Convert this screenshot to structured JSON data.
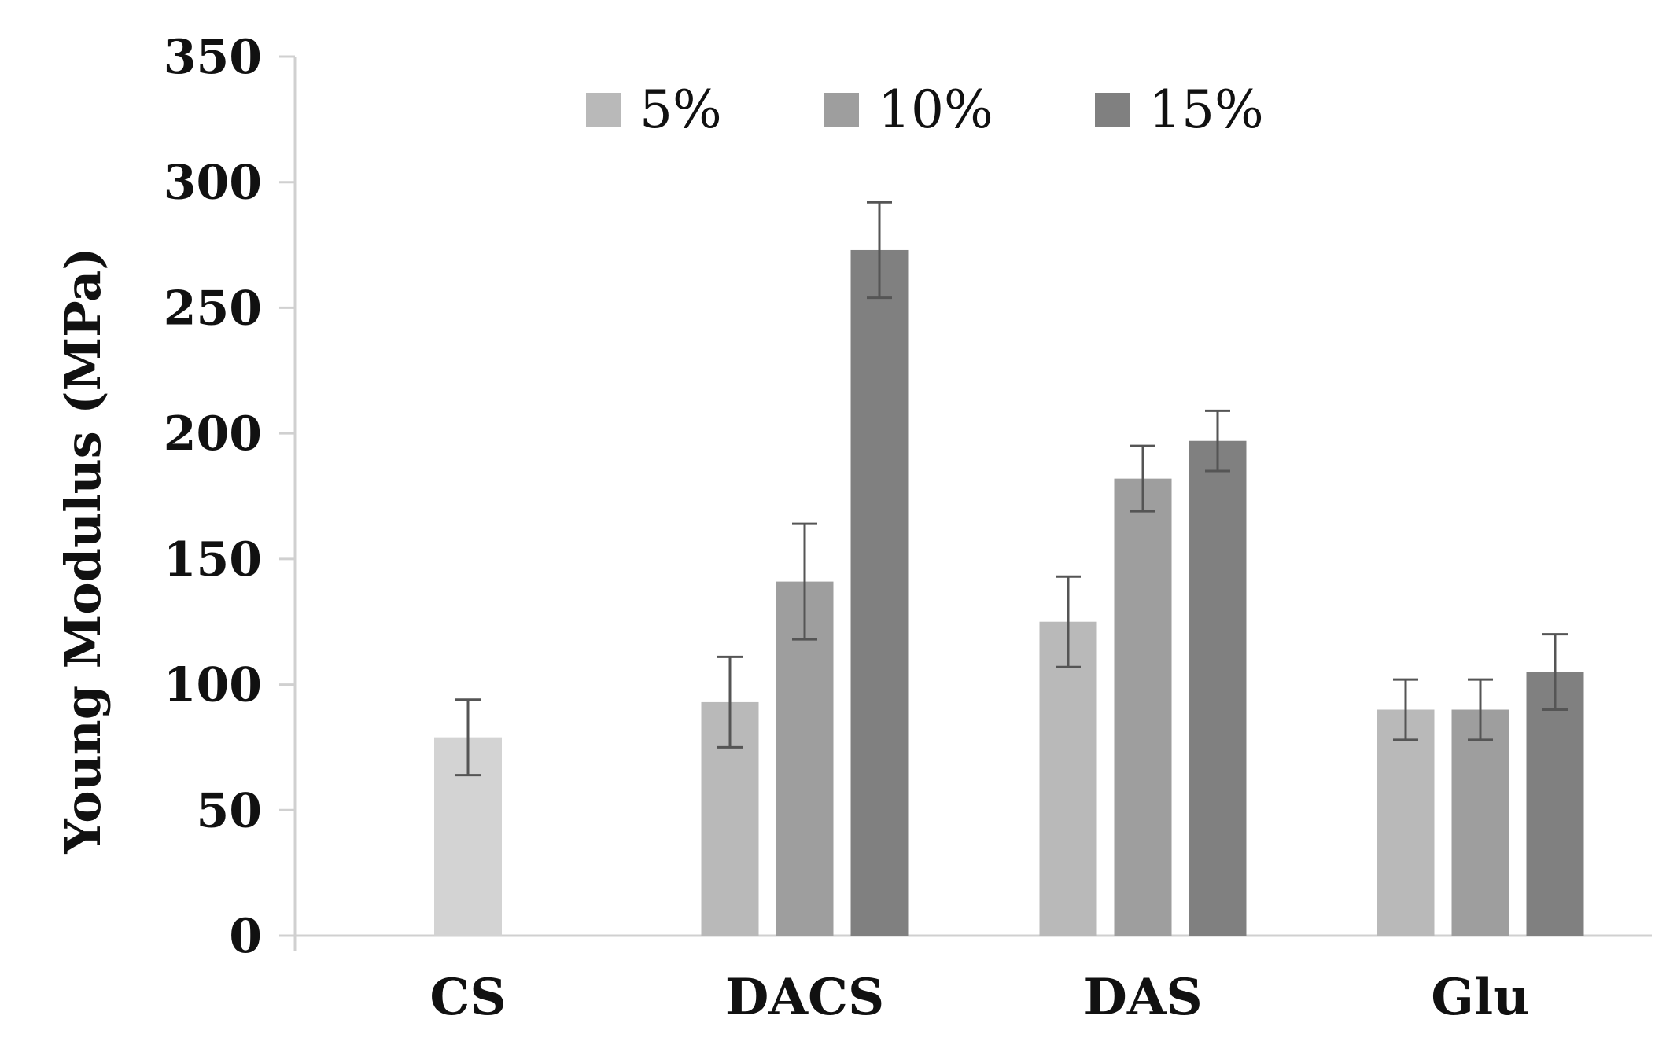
{
  "chart_data": {
    "type": "bar",
    "title": "",
    "xlabel": "",
    "ylabel": "Young Modulus (MPa)",
    "ylim": [
      0,
      350
    ],
    "yticks": [
      "0",
      "50",
      "100",
      "150",
      "200",
      "250",
      "300",
      "350"
    ],
    "grid": false,
    "legend_position": "top-center",
    "categories": [
      "CS",
      "DACS",
      "DAS",
      "Glu"
    ],
    "series": [
      {
        "name": "5%",
        "color": "#b9b9b9",
        "values": [
          null,
          93,
          125,
          90
        ],
        "errors": [
          null,
          18,
          18,
          12
        ]
      },
      {
        "name": "10%",
        "color": "#9e9e9e",
        "values": [
          null,
          141,
          182,
          90
        ],
        "errors": [
          null,
          23,
          13,
          12
        ]
      },
      {
        "name": "15%",
        "color": "#808080",
        "values": [
          null,
          273,
          197,
          105
        ],
        "errors": [
          null,
          19,
          12,
          15
        ]
      }
    ],
    "standalone": {
      "category": "CS",
      "value": 79,
      "error": 15,
      "color": "#d3d3d3"
    }
  }
}
